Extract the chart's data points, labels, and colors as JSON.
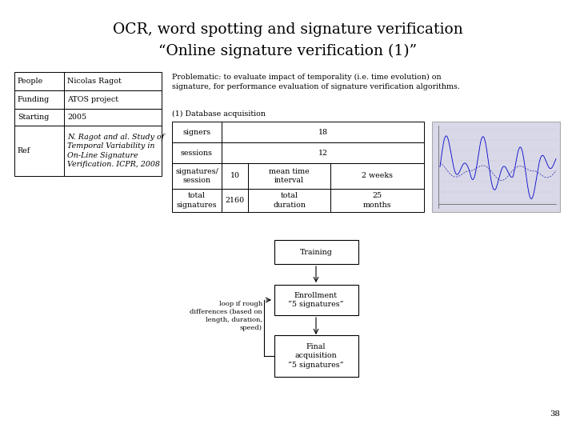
{
  "title_line1": "OCR, word spotting and signature verification",
  "title_line2": "“Online signature verification (1)”",
  "bg_color": "#ffffff",
  "left_table_rows": [
    [
      "People",
      "Nicolas Ragot"
    ],
    [
      "Funding",
      "ATOS project"
    ],
    [
      "Starting",
      "2005"
    ],
    [
      "Ref",
      "N. Ragot and al. Study of\nTemporal Variability in\nOn-Line Signature\nVerification. ICPR, 2008"
    ]
  ],
  "problematic_text": "Problematic: to evaluate impact of temporality (i.e. time evolution) on\nsignature, for performance evaluation of signature verification algorithms.",
  "db_label": "(1) Database acquisition",
  "loop_text": "loop if rough\ndifferences (based on\nlength, duration,\nspeed)",
  "flow_labels": [
    "Training",
    "Enrollment\n“5 signatures”",
    "Final\nacquisition\n“5 signatures”"
  ],
  "page_number": "38",
  "font_color": "#000000",
  "title_fontsize": 13.5,
  "body_fontsize": 6.8,
  "small_fontsize": 6.0
}
